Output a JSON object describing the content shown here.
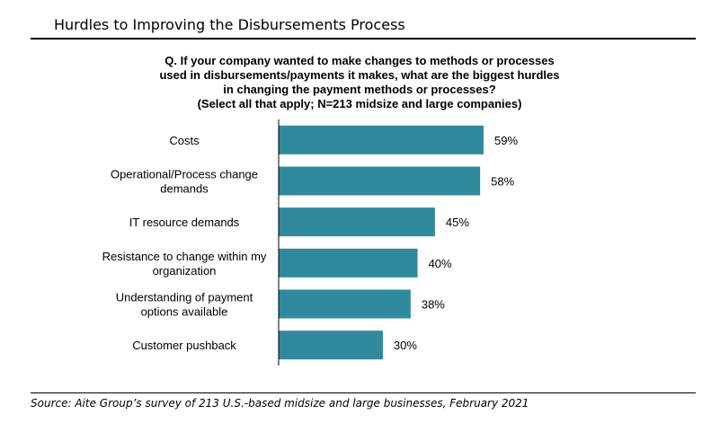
{
  "title": "Hurdles to Improving the Disbursements Process",
  "question_lines": [
    "Q. If your company wanted to make changes to methods or processes",
    "used in disbursements/payments it makes, what are the biggest hurdles",
    "in changing the payment methods or processes?",
    "(Select all that apply; N=213 midsize and large companies)"
  ],
  "source": "Source: Aite Group’s survey of 213 U.S.-based midsize and large businesses, February 2021",
  "colors": {
    "bar": "#2f8a9e",
    "axis": "#000000"
  },
  "chart_data": {
    "type": "bar",
    "orientation": "horizontal",
    "categories": [
      [
        "Costs"
      ],
      [
        "Operational/Process change",
        "demands"
      ],
      [
        "IT resource demands"
      ],
      [
        "Resistance to change within my",
        "organization"
      ],
      [
        "Understanding of payment",
        "options available"
      ],
      [
        "Customer pushback"
      ]
    ],
    "values": [
      59,
      58,
      45,
      40,
      38,
      30
    ],
    "value_labels": [
      "59%",
      "58%",
      "45%",
      "40%",
      "38%",
      "30%"
    ],
    "xlim": [
      0,
      100
    ],
    "grid": false
  }
}
